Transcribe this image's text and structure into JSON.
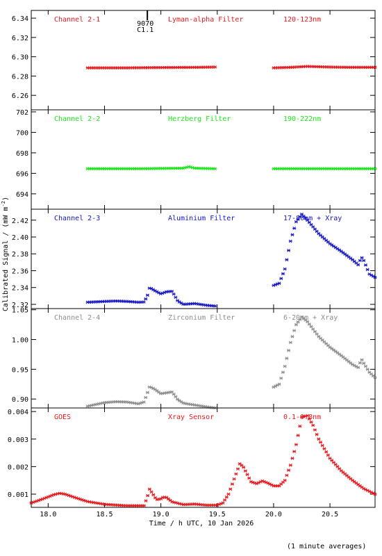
{
  "ylabel": "Calibrated Signal / (mW m",
  "ylabel_sup": "-2",
  "ylabel_end": ")",
  "footer_note": "(1 minute averages)",
  "marker": {
    "label_top": "9070",
    "label_bottom": "C1.1",
    "x": 18.88
  },
  "chart_data": [
    {
      "type": "scatter",
      "labels": [
        "Channel 2-1",
        "Lyman-alpha Filter",
        "120-123nm"
      ],
      "color": "#e8171a",
      "xlim": [
        17.85,
        20.9
      ],
      "ylim": [
        6.245,
        6.348
      ],
      "yticks": [
        6.26,
        6.28,
        6.3,
        6.32,
        6.34
      ],
      "tick_labels": [
        "6.26",
        "6.28",
        "6.30",
        "6.32",
        "6.34"
      ],
      "segments": [
        {
          "points": [
            [
              18.35,
              6.2885
            ],
            [
              18.7,
              6.2885
            ],
            [
              19.0,
              6.2888
            ],
            [
              19.3,
              6.289
            ],
            [
              19.48,
              6.2893
            ]
          ]
        },
        {
          "points": [
            [
              20.0,
              6.2885
            ],
            [
              20.15,
              6.289
            ],
            [
              20.3,
              6.29
            ],
            [
              20.5,
              6.2893
            ],
            [
              20.7,
              6.289
            ],
            [
              20.9,
              6.289
            ]
          ]
        }
      ]
    },
    {
      "type": "scatter",
      "labels": [
        "Channel 2-2",
        "Herzberg Filter",
        "190-222nm"
      ],
      "color": "#19e619",
      "xlim": [
        17.85,
        20.9
      ],
      "ylim": [
        692.5,
        702.2
      ],
      "yticks": [
        694,
        696,
        698,
        700,
        702
      ],
      "tick_labels": [
        "694",
        "696",
        "698",
        "700",
        "702"
      ],
      "segments": [
        {
          "points": [
            [
              18.35,
              696.45
            ],
            [
              18.8,
              696.45
            ],
            [
              19.2,
              696.5
            ],
            [
              19.25,
              696.65
            ],
            [
              19.3,
              696.5
            ],
            [
              19.48,
              696.45
            ]
          ]
        },
        {
          "points": [
            [
              20.0,
              696.45
            ],
            [
              20.5,
              696.45
            ],
            [
              20.9,
              696.45
            ]
          ]
        }
      ]
    },
    {
      "type": "scatter",
      "labels": [
        "Channel 2-3",
        "Aluminium Filter",
        "17-80nm + Xray"
      ],
      "color": "#1515c8",
      "xlim": [
        17.85,
        20.9
      ],
      "ylim": [
        2.315,
        2.433
      ],
      "yticks": [
        2.32,
        2.34,
        2.36,
        2.38,
        2.4,
        2.42
      ],
      "tick_labels": [
        "2.32",
        "2.34",
        "2.36",
        "2.38",
        "2.40",
        "2.42"
      ],
      "segments": [
        {
          "points": [
            [
              18.35,
              2.3225
            ],
            [
              18.5,
              2.3235
            ],
            [
              18.6,
              2.324
            ],
            [
              18.7,
              2.3235
            ],
            [
              18.8,
              2.3225
            ],
            [
              18.85,
              2.3228
            ],
            [
              18.88,
              2.33
            ],
            [
              18.9,
              2.34
            ],
            [
              18.95,
              2.336
            ],
            [
              19.0,
              2.3325
            ],
            [
              19.05,
              2.335
            ],
            [
              19.1,
              2.3355
            ],
            [
              19.15,
              2.324
            ],
            [
              19.2,
              2.32
            ],
            [
              19.3,
              2.321
            ],
            [
              19.4,
              2.319
            ],
            [
              19.48,
              2.318
            ]
          ]
        },
        {
          "points": [
            [
              20.0,
              2.3425
            ],
            [
              20.05,
              2.345
            ],
            [
              20.1,
              2.362
            ],
            [
              20.15,
              2.395
            ],
            [
              20.2,
              2.418
            ],
            [
              20.25,
              2.427
            ],
            [
              20.3,
              2.42
            ],
            [
              20.4,
              2.404
            ],
            [
              20.5,
              2.392
            ],
            [
              20.6,
              2.383
            ],
            [
              20.7,
              2.373
            ],
            [
              20.75,
              2.367
            ],
            [
              20.78,
              2.376
            ],
            [
              20.8,
              2.372
            ],
            [
              20.85,
              2.356
            ],
            [
              20.9,
              2.352
            ]
          ]
        }
      ]
    },
    {
      "type": "scatter",
      "labels": [
        "Channel 2-4",
        "Zirconium Filter",
        "6-20nm + Xray"
      ],
      "color": "#8c8c8c",
      "xlim": [
        17.85,
        20.9
      ],
      "ylim": [
        0.885,
        1.052
      ],
      "yticks": [
        0.9,
        0.95,
        1.0,
        1.05
      ],
      "tick_labels": [
        "0.90",
        "0.95",
        "1.00",
        "1.05"
      ],
      "segments": [
        {
          "points": [
            [
              18.35,
              0.888
            ],
            [
              18.5,
              0.894
            ],
            [
              18.6,
              0.8955
            ],
            [
              18.7,
              0.895
            ],
            [
              18.8,
              0.892
            ],
            [
              18.85,
              0.895
            ],
            [
              18.88,
              0.91
            ],
            [
              18.9,
              0.921
            ],
            [
              18.95,
              0.916
            ],
            [
              19.0,
              0.909
            ],
            [
              19.1,
              0.912
            ],
            [
              19.15,
              0.899
            ],
            [
              19.2,
              0.893
            ],
            [
              19.3,
              0.89
            ],
            [
              19.4,
              0.887
            ],
            [
              19.48,
              0.885
            ]
          ]
        },
        {
          "points": [
            [
              20.0,
              0.92
            ],
            [
              20.05,
              0.925
            ],
            [
              20.1,
              0.955
            ],
            [
              20.15,
              0.995
            ],
            [
              20.2,
              1.025
            ],
            [
              20.25,
              1.038
            ],
            [
              20.3,
              1.03
            ],
            [
              20.4,
              1.005
            ],
            [
              20.5,
              0.987
            ],
            [
              20.6,
              0.973
            ],
            [
              20.7,
              0.958
            ],
            [
              20.75,
              0.953
            ],
            [
              20.78,
              0.967
            ],
            [
              20.8,
              0.96
            ],
            [
              20.85,
              0.945
            ],
            [
              20.9,
              0.936
            ]
          ]
        }
      ]
    },
    {
      "type": "scatter",
      "labels": [
        "GOES",
        "Xray Sensor",
        "0.1-0.8nm"
      ],
      "color": "#e8171a",
      "xlim": [
        17.85,
        20.9
      ],
      "ylim": [
        0.00052,
        0.00413
      ],
      "yticks": [
        0.001,
        0.002,
        0.003,
        0.004
      ],
      "tick_labels": [
        "0.001",
        "0.002",
        "0.003",
        "0.004"
      ],
      "xticks": [
        18.0,
        18.5,
        19.0,
        19.5,
        20.0,
        20.5
      ],
      "xtick_labels": [
        "18.0",
        "18.5",
        "19.0",
        "19.5",
        "20.0",
        "20.5"
      ],
      "xlabel": "Time / h UTC, 10 Jan 2026",
      "segments": [
        {
          "points": [
            [
              17.85,
              0.00068
            ],
            [
              17.95,
              0.00082
            ],
            [
              18.05,
              0.00098
            ],
            [
              18.1,
              0.00103
            ],
            [
              18.15,
              0.001
            ],
            [
              18.25,
              0.00086
            ],
            [
              18.35,
              0.00073
            ],
            [
              18.5,
              0.00063
            ],
            [
              18.7,
              0.00058
            ],
            [
              18.85,
              0.00058
            ],
            [
              18.88,
              0.0009
            ],
            [
              18.9,
              0.00118
            ],
            [
              18.93,
              0.001
            ],
            [
              18.96,
              0.0008
            ],
            [
              19.0,
              0.00083
            ],
            [
              19.02,
              0.00089
            ],
            [
              19.05,
              0.00088
            ],
            [
              19.1,
              0.00072
            ],
            [
              19.2,
              0.00062
            ],
            [
              19.3,
              0.00064
            ],
            [
              19.4,
              0.0006
            ],
            [
              19.5,
              0.0006
            ],
            [
              19.55,
              0.00068
            ],
            [
              19.6,
              0.001
            ],
            [
              19.65,
              0.00155
            ],
            [
              19.7,
              0.0021
            ],
            [
              19.73,
              0.002
            ],
            [
              19.8,
              0.00145
            ],
            [
              19.85,
              0.00138
            ],
            [
              19.9,
              0.00148
            ],
            [
              19.95,
              0.0014
            ],
            [
              20.0,
              0.0013
            ],
            [
              20.05,
              0.0013
            ],
            [
              20.1,
              0.0015
            ],
            [
              20.15,
              0.00205
            ],
            [
              20.2,
              0.0028
            ],
            [
              20.25,
              0.0038
            ],
            [
              20.3,
              0.00385
            ],
            [
              20.35,
              0.0035
            ],
            [
              20.4,
              0.003
            ],
            [
              20.5,
              0.0023
            ],
            [
              20.6,
              0.00185
            ],
            [
              20.7,
              0.0015
            ],
            [
              20.8,
              0.0012
            ],
            [
              20.9,
              0.001
            ]
          ]
        }
      ]
    }
  ]
}
